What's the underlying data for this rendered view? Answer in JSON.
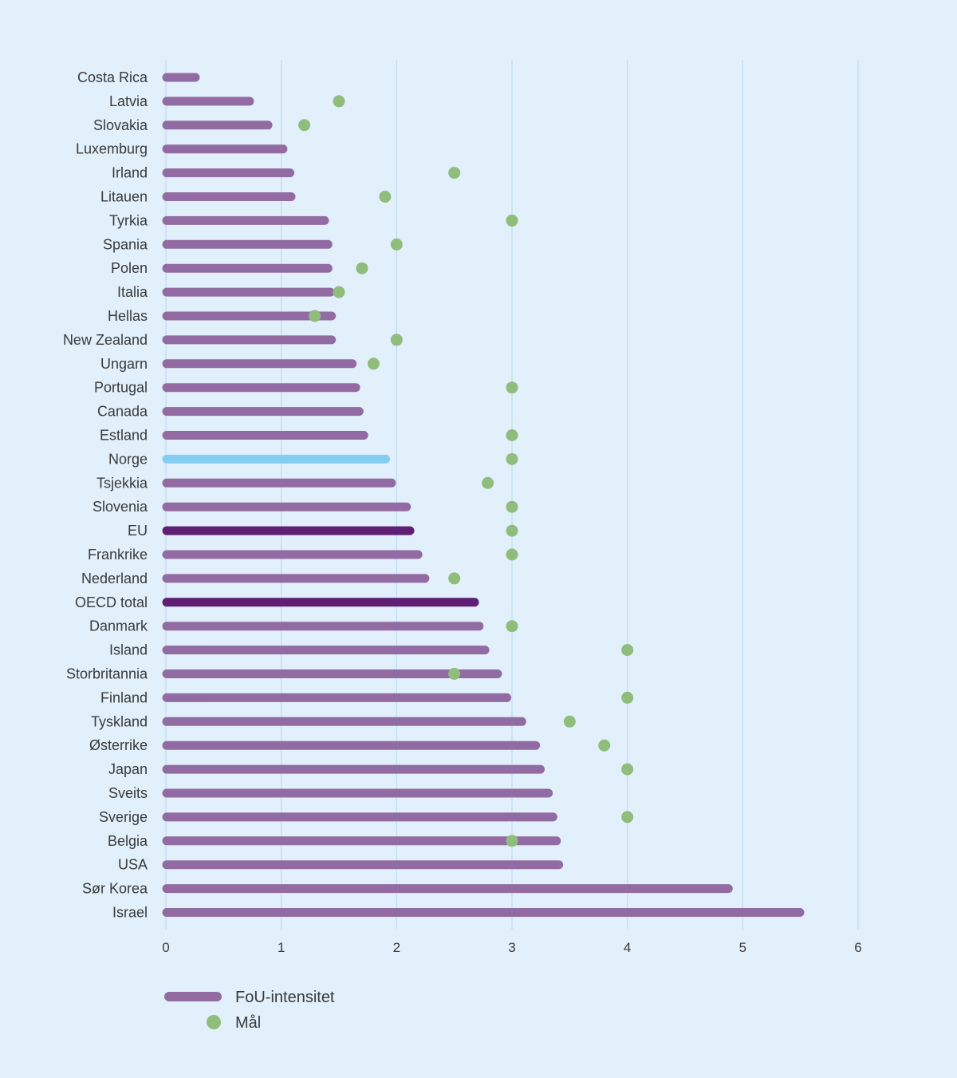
{
  "chart_data": {
    "type": "bar",
    "orientation": "horizontal",
    "categories": [
      "Costa Rica",
      "Latvia",
      "Slovakia",
      "Luxemburg",
      "Irland",
      "Litauen",
      "Tyrkia",
      "Spania",
      "Polen",
      "Italia",
      "Hellas",
      "New Zealand",
      "Ungarn",
      "Portugal",
      "Canada",
      "Estland",
      "Norge",
      "Tsjekkia",
      "Slovenia",
      "EU",
      "Frankrike",
      "Nederland",
      "OECD total",
      "Danmark",
      "Island",
      "Storbritannia",
      "Finland",
      "Tyskland",
      "Østerrike",
      "Japan",
      "Sveits",
      "Sverige",
      "Belgia",
      "USA",
      "Sør Korea",
      "Israel"
    ],
    "series": [
      {
        "name": "FoU-intensitet",
        "type": "bar",
        "values": [
          0.29,
          0.76,
          0.92,
          1.05,
          1.11,
          1.12,
          1.41,
          1.44,
          1.44,
          1.46,
          1.47,
          1.47,
          1.65,
          1.68,
          1.71,
          1.75,
          1.94,
          1.99,
          2.12,
          2.15,
          2.22,
          2.28,
          2.71,
          2.75,
          2.8,
          2.91,
          2.99,
          3.12,
          3.24,
          3.28,
          3.35,
          3.39,
          3.42,
          3.44,
          4.91,
          5.53
        ]
      },
      {
        "name": "Mål",
        "type": "scatter",
        "values": [
          null,
          1.5,
          1.2,
          null,
          2.5,
          1.9,
          3.0,
          2.0,
          1.7,
          1.5,
          1.29,
          2.0,
          1.8,
          3.0,
          null,
          3.0,
          3.0,
          2.79,
          3.0,
          3.0,
          3.0,
          2.5,
          null,
          3.0,
          4.0,
          2.5,
          4.0,
          3.5,
          3.8,
          4.0,
          null,
          4.0,
          3.0,
          null,
          null,
          null
        ]
      }
    ],
    "highlight": {
      "Norge": "#85cdf0",
      "EU": "#5e1f75",
      "OECD total": "#5e1f75"
    },
    "xlim": [
      0,
      6
    ],
    "xticks": [
      "0",
      "1",
      "2",
      "3",
      "4",
      "5",
      "6"
    ],
    "grid": true,
    "legend_position": "bottom-left",
    "colors": {
      "bar": "#936ba3",
      "dot": "#8fbd7c",
      "grid": "#bfdcf3",
      "background": "#e2f0fb"
    }
  },
  "legend": {
    "bar_label": "FoU-intensitet",
    "dot_label": "Mål"
  }
}
